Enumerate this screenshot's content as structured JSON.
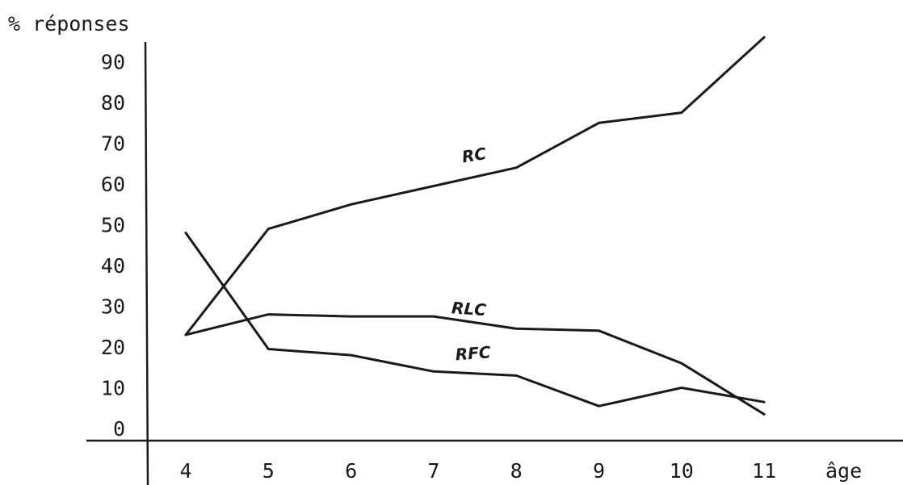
{
  "chart_data": {
    "type": "line",
    "ylabel": "% réponses",
    "xlabel": "âge",
    "x": [
      4,
      5,
      6,
      7,
      8,
      9,
      10,
      11
    ],
    "x_tick_labels": [
      "4",
      "5",
      "6",
      "7",
      "8",
      "9",
      "10",
      "11"
    ],
    "y_tick_labels": [
      "0",
      "10",
      "20",
      "30",
      "40",
      "50",
      "60",
      "70",
      "80",
      "90"
    ],
    "ylim": [
      0,
      95
    ],
    "xlim": [
      4,
      11
    ],
    "grid": false,
    "series": [
      {
        "name": "RC",
        "values": [
          23,
          49,
          55,
          59.5,
          64,
          75,
          77.5,
          96
        ]
      },
      {
        "name": "RLC",
        "values": [
          23,
          28,
          27.5,
          27.5,
          24.5,
          24,
          16,
          3.5
        ]
      },
      {
        "name": "RFC",
        "values": [
          48,
          19.5,
          18,
          14,
          13,
          5.5,
          10,
          6.5
        ]
      }
    ]
  }
}
